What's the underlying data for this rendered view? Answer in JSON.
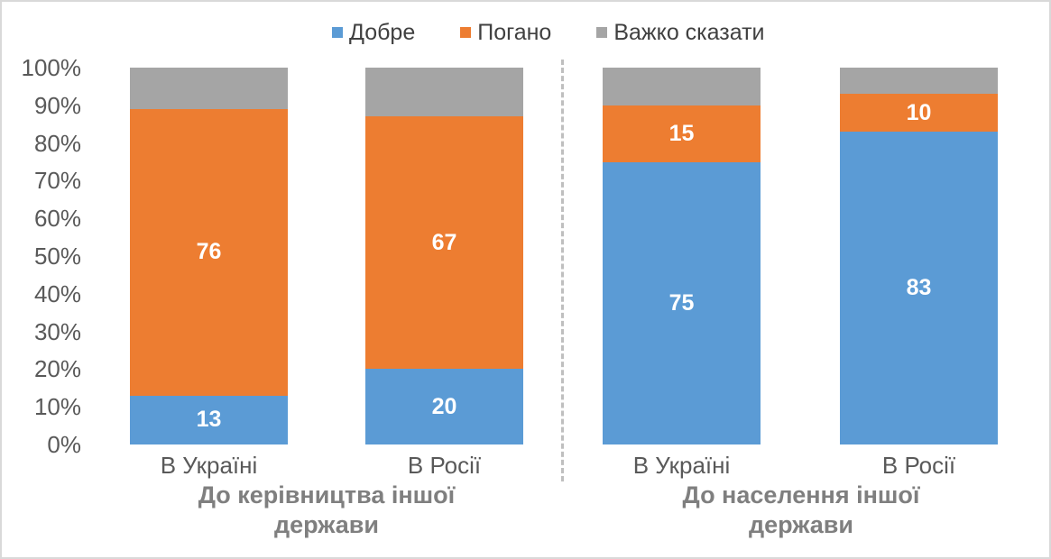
{
  "colors": {
    "series_blue": "#5B9BD5",
    "series_orange": "#ED7D31",
    "series_gray": "#A5A5A5",
    "data_label_text": "#FFFFFF",
    "axis_text": "#595959",
    "legend_text": "#404040",
    "group_title_text": "#7F7F7F",
    "divider_line": "#BFBFBF",
    "canvas_border": "#D9D9D9",
    "background": "#FFFFFF"
  },
  "legend": {
    "position": "top",
    "items": [
      {
        "label": "Добре",
        "color": "#5B9BD5"
      },
      {
        "label": "Погано",
        "color": "#ED7D31"
      },
      {
        "label": "Важко сказати",
        "color": "#A5A5A5"
      }
    ]
  },
  "chart_data": {
    "type": "bar",
    "stacked": true,
    "orientation": "vertical",
    "unit": "percent",
    "title": "",
    "xlabel": "",
    "ylabel": "",
    "ylim": [
      0,
      100
    ],
    "grid": false,
    "y_ticks": [
      "100%",
      "90%",
      "80%",
      "70%",
      "60%",
      "50%",
      "40%",
      "30%",
      "20%",
      "10%",
      "0%"
    ],
    "categories": [
      "В Україні",
      "В Росії",
      "В Україні",
      "В Росії"
    ],
    "groups": [
      {
        "title": "До керівництва іншої держави",
        "category_indexes": [
          0,
          1
        ]
      },
      {
        "title": "До населення іншої держави",
        "category_indexes": [
          2,
          3
        ]
      }
    ],
    "series": [
      {
        "name": "Добре",
        "color": "#5B9BD5",
        "values": [
          13,
          20,
          75,
          83
        ],
        "data_labels_shown": true
      },
      {
        "name": "Погано",
        "color": "#ED7D31",
        "values": [
          76,
          67,
          15,
          10
        ],
        "data_labels_shown": true
      },
      {
        "name": "Важко сказати",
        "color": "#A5A5A5",
        "values": [
          11,
          13,
          10,
          7
        ],
        "data_labels_shown": false
      }
    ]
  }
}
